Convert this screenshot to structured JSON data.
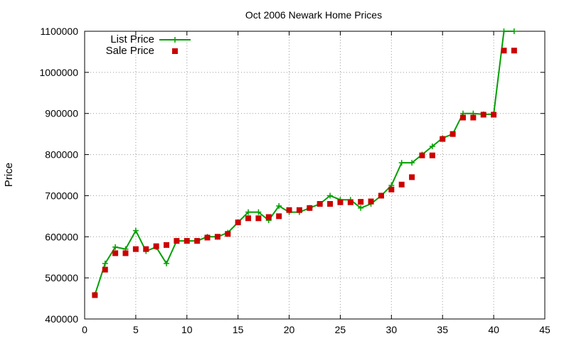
{
  "chart_data": {
    "type": "line",
    "title": "Oct 2006 Newark Home Prices",
    "xlabel": "",
    "ylabel": "Price",
    "xlim": [
      0,
      45
    ],
    "ylim": [
      400000,
      1100000
    ],
    "xticks": [
      0,
      5,
      10,
      15,
      20,
      25,
      30,
      35,
      40,
      45
    ],
    "yticks": [
      400000,
      500000,
      600000,
      700000,
      800000,
      900000,
      1000000,
      1100000
    ],
    "xtick_labels": [
      "0",
      "5",
      "10",
      "15",
      "20",
      "25",
      "30",
      "35",
      "40",
      "45"
    ],
    "ytick_labels": [
      "400000",
      "500000",
      "600000",
      "700000",
      "800000",
      "900000",
      "1000000",
      "1100000"
    ],
    "grid": true,
    "legend_position": "top-left",
    "x": [
      1,
      2,
      3,
      4,
      5,
      6,
      7,
      8,
      9,
      10,
      11,
      12,
      13,
      14,
      15,
      16,
      17,
      18,
      19,
      20,
      21,
      22,
      23,
      24,
      25,
      26,
      27,
      28,
      29,
      30,
      31,
      32,
      33,
      34,
      35,
      36,
      37,
      38,
      39,
      40,
      41,
      42
    ],
    "series": [
      {
        "name": "List Price",
        "style": "line-cross",
        "color": "#00a000",
        "values": [
          459000,
          535000,
          575000,
          570000,
          615000,
          565000,
          575000,
          535000,
          590000,
          590000,
          590000,
          600000,
          600000,
          610000,
          635000,
          660000,
          660000,
          640000,
          675000,
          660000,
          660000,
          670000,
          680000,
          700000,
          690000,
          690000,
          670000,
          680000,
          700000,
          725000,
          780000,
          780000,
          800000,
          820000,
          840000,
          850000,
          900000,
          900000,
          898000,
          898000,
          1100000,
          1100000
        ]
      },
      {
        "name": "Sale Price",
        "style": "square",
        "color": "#cc0000",
        "values": [
          458000,
          520000,
          560000,
          560000,
          570000,
          570000,
          577000,
          580000,
          590000,
          590000,
          590000,
          598000,
          600000,
          607000,
          635000,
          645000,
          645000,
          648000,
          650000,
          665000,
          665000,
          670000,
          680000,
          680000,
          684000,
          684000,
          685000,
          686000,
          700000,
          715000,
          727000,
          745000,
          798000,
          798000,
          838000,
          850000,
          890000,
          890000,
          897000,
          897000,
          1053000,
          1053000
        ]
      }
    ]
  }
}
